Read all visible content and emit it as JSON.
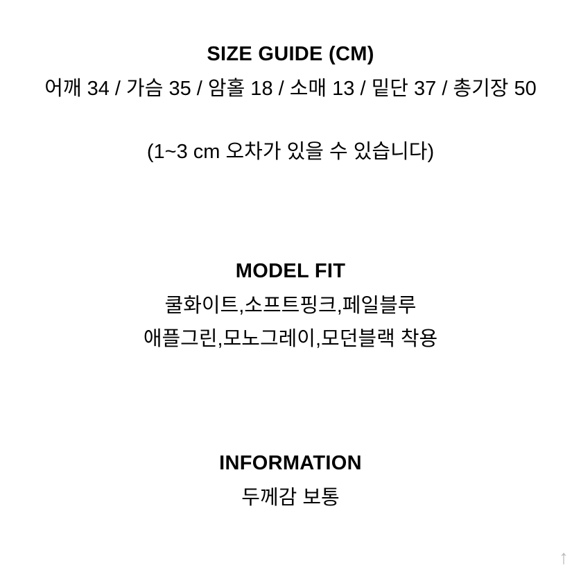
{
  "sizeGuide": {
    "title": "SIZE GUIDE (CM)",
    "measurements": "어깨 34 / 가슴 35 / 암홀 18 / 소매 13 / 밑단 37 / 총기장 50",
    "note": "(1~3 cm 오차가 있을 수 있습니다)"
  },
  "modelFit": {
    "title": "MODEL FIT",
    "line1": "쿨화이트,소프트핑크,페일블루",
    "line2": "애플그린,모노그레이,모던블랙 착용"
  },
  "information": {
    "title": "INFORMATION",
    "line1": "두께감 보통"
  },
  "styling": {
    "background_color": "#ffffff",
    "text_color": "#000000",
    "title_fontsize": 29,
    "title_fontweight": 800,
    "body_fontsize": 29,
    "body_fontweight": 400,
    "line_height": 1.65,
    "section_spacing": 138,
    "scroll_icon_color": "#b8b8b8"
  }
}
